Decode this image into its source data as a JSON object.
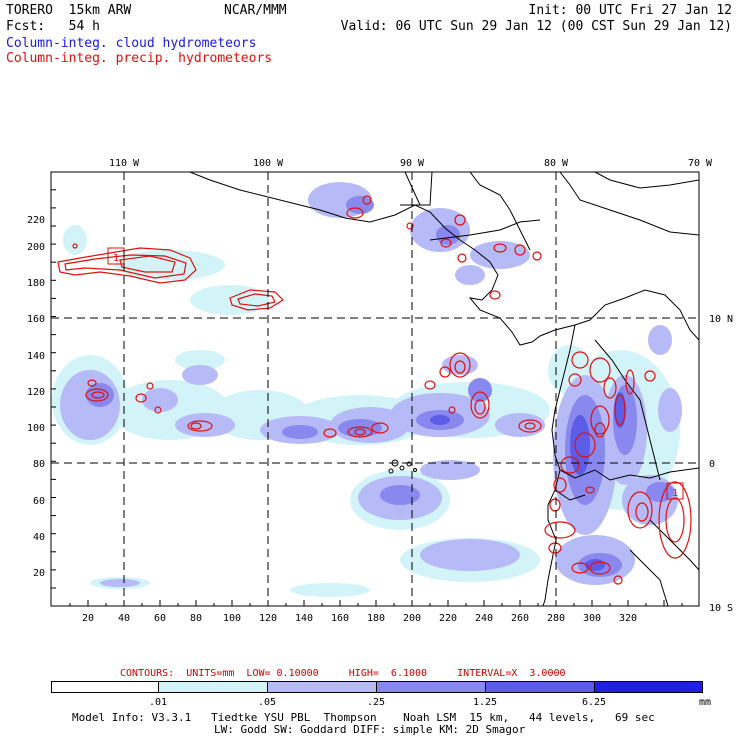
{
  "header": {
    "model": "TORERO  15km ARW",
    "org": "NCAR/MMM",
    "init": "Init: 00 UTC Fri 27 Jan 12",
    "fcst": "Fcst:   54 h",
    "valid": "Valid: 06 UTC Sun 29 Jan 12 (00 CST Sun 29 Jan 12)",
    "field_cloud": "Column-integ. cloud hydrometeors",
    "field_precip": "Column-integ. precip. hydrometeors",
    "colors": {
      "cloud": "#1a1ad6",
      "precip": "#e01010"
    }
  },
  "map": {
    "lon_labels": [
      "110 W",
      "100 W",
      "90 W",
      "80 W",
      "70 W"
    ],
    "lat_labels": [
      "10 N",
      "0",
      "10 S"
    ],
    "x_ticks": [
      "20",
      "40",
      "60",
      "80",
      "100",
      "120",
      "140",
      "160",
      "180",
      "200",
      "220",
      "240",
      "260",
      "280",
      "300",
      "320"
    ],
    "y_ticks": [
      "20",
      "40",
      "60",
      "80",
      "100",
      "120",
      "140",
      "160",
      "180",
      "200",
      "220"
    ],
    "marker_label": "1"
  },
  "contours": {
    "label": "CONTOURS:  UNITS=mm  LOW= 0.10000     HIGH=  6.1000     INTERVAL=X  3.0000",
    "color": "#cc0000"
  },
  "colorbar": {
    "labels": [
      ".01",
      ".05",
      ".25",
      "1.25",
      "6.25"
    ],
    "unit": "mm",
    "colors": [
      "#ffffff",
      "#d2f4f8",
      "#b6baf6",
      "#8888ee",
      "#5c5ce6",
      "#2020e0"
    ]
  },
  "footer": {
    "line1": "Model Info: V3.3.1   Tiedtke YSU PBL  Thompson    Noah LSM  15 km,   44 levels,   69 sec",
    "line2": "LW: Godd SW: Goddard DIFF: simple KM: 2D Smagor"
  }
}
